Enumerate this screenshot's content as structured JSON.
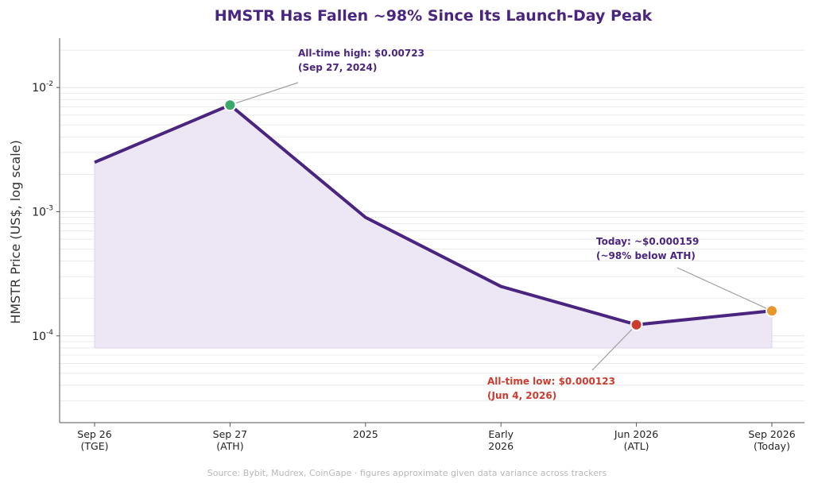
{
  "chart_data": {
    "type": "line",
    "title": "HMSTR Has Fallen ~98% Since Its Launch-Day Peak",
    "xlabel": "",
    "ylabel": "HMSTR Price (US$, log scale)",
    "yscale": "log",
    "ylim": [
      2e-05,
      0.025
    ],
    "ytick_labels": [
      {
        "value": 0.01,
        "base": "10",
        "exp": "-2"
      },
      {
        "value": 0.001,
        "base": "10",
        "exp": "-3"
      },
      {
        "value": 0.0001,
        "base": "10",
        "exp": "-4"
      }
    ],
    "categories": [
      [
        "Sep 26",
        "(TGE)"
      ],
      [
        "Sep 27",
        "(ATH)"
      ],
      [
        "2025"
      ],
      [
        "Early",
        "2026"
      ],
      [
        "Jun 2026",
        "(ATL)"
      ],
      [
        "Sep 2026",
        "(Today)"
      ]
    ],
    "series": [
      {
        "values": [
          0.0025,
          0.00723,
          0.0009,
          0.00025,
          0.000123,
          0.000159
        ]
      }
    ],
    "area_fill_floor": 8e-05,
    "grid": "horizontal",
    "colors": {
      "line": "#4a2580",
      "area": "#ece6f5",
      "grid": "#e6e6e6",
      "ath_marker": "#3aa868",
      "atl_marker": "#cc3b2e",
      "today_marker": "#e8952a",
      "ath_text": "#4a2580",
      "atl_text": "#cc3b2e",
      "today_text": "#4a2580",
      "leader": "#a0a0a0"
    },
    "annotations": [
      {
        "name": "ath",
        "point_index": 1,
        "lines": [
          "All-time high: $0.00723",
          "(Sep 27, 2024)"
        ]
      },
      {
        "name": "today",
        "point_index": 5,
        "lines": [
          "Today: ~$0.000159",
          "(~98% below ATH)"
        ]
      },
      {
        "name": "atl",
        "point_index": 4,
        "lines": [
          "All-time low: $0.000123",
          "(Jun 4, 2026)"
        ]
      }
    ],
    "source": "Source: Bybit, Mudrex, CoinGape · figures approximate given data variance across trackers"
  }
}
